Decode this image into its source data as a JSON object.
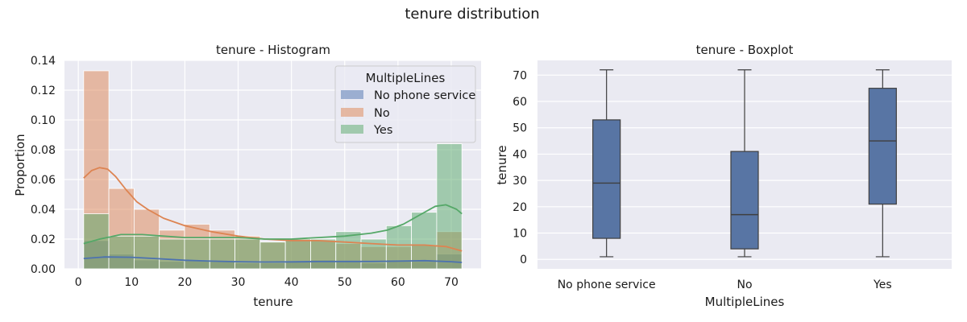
{
  "figure_title": "tenure distribution",
  "colors": {
    "no_phone_service": "#4c72b0",
    "no": "#dd8452",
    "yes": "#55a868",
    "box_fill": "#5875a4",
    "box_line": "#3f3f3f",
    "panel_bg": "#eaeaf2",
    "grid": "#ffffff"
  },
  "chart_data": [
    {
      "type": "histogram",
      "title": "tenure - Histogram",
      "xlabel": "tenure",
      "ylabel": "Proportion",
      "xlim": [
        -2.6,
        75.6
      ],
      "ylim": [
        0,
        0.14
      ],
      "xticks": [
        0,
        10,
        20,
        30,
        40,
        50,
        60,
        70
      ],
      "yticks": [
        0.0,
        0.02,
        0.04,
        0.06,
        0.08,
        0.1,
        0.12,
        0.14
      ],
      "yticklabels": [
        "0.00",
        "0.02",
        "0.04",
        "0.06",
        "0.08",
        "0.10",
        "0.12",
        "0.14"
      ],
      "bin_edges": [
        1,
        5.7333,
        10.4667,
        15.2,
        19.9333,
        24.6667,
        29.4,
        34.1333,
        38.8667,
        43.6,
        48.3333,
        53.0667,
        57.8,
        62.5333,
        67.2667,
        72
      ],
      "legend": {
        "title": "MultipleLines",
        "position": "top-right"
      },
      "series": [
        {
          "name": "No phone service",
          "color_key": "no_phone_service",
          "values": [
            0.019,
            0.01,
            0.006,
            0.005,
            0.006,
            0.005,
            0.004,
            0.004,
            0.005,
            0.006,
            0.005,
            0.004,
            0.006,
            0.005,
            0.01
          ],
          "kde": {
            "x": [
              1,
              5,
              10,
              15,
              20,
              25,
              30,
              35,
              40,
              45,
              50,
              55,
              60,
              65,
              70,
              72
            ],
            "y": [
              0.007,
              0.008,
              0.0078,
              0.0068,
              0.0058,
              0.0052,
              0.0048,
              0.0046,
              0.0047,
              0.0049,
              0.005,
              0.005,
              0.0052,
              0.0055,
              0.0048,
              0.0043
            ]
          }
        },
        {
          "name": "No",
          "color_key": "no",
          "values": [
            0.133,
            0.054,
            0.04,
            0.026,
            0.03,
            0.026,
            0.022,
            0.018,
            0.02,
            0.019,
            0.017,
            0.015,
            0.015,
            0.016,
            0.025
          ],
          "kde": {
            "x": [
              1,
              2.5,
              4,
              5.5,
              7,
              9,
              11,
              13,
              16,
              20,
              25,
              30,
              35,
              40,
              45,
              50,
              55,
              60,
              65,
              69,
              72
            ],
            "y": [
              0.061,
              0.066,
              0.068,
              0.067,
              0.062,
              0.053,
              0.045,
              0.04,
              0.034,
              0.029,
              0.025,
              0.022,
              0.02,
              0.019,
              0.019,
              0.018,
              0.017,
              0.016,
              0.016,
              0.015,
              0.012
            ]
          }
        },
        {
          "name": "Yes",
          "color_key": "yes",
          "values": [
            0.037,
            0.022,
            0.022,
            0.02,
            0.02,
            0.02,
            0.02,
            0.018,
            0.02,
            0.02,
            0.025,
            0.02,
            0.029,
            0.038,
            0.084
          ],
          "kde": {
            "x": [
              1,
              4,
              8,
              12,
              16,
              20,
              25,
              30,
              35,
              40,
              45,
              50,
              55,
              58,
              61,
              64,
              67,
              69,
              71,
              72
            ],
            "y": [
              0.017,
              0.02,
              0.023,
              0.023,
              0.022,
              0.021,
              0.021,
              0.021,
              0.02,
              0.02,
              0.021,
              0.022,
              0.024,
              0.026,
              0.03,
              0.036,
              0.042,
              0.043,
              0.04,
              0.037
            ]
          }
        }
      ]
    },
    {
      "type": "boxplot",
      "title": "tenure - Boxplot",
      "xlabel": "MultipleLines",
      "ylabel": "tenure",
      "categories": [
        "No phone service",
        "No",
        "Yes"
      ],
      "ylim": [
        -3.6,
        75.6
      ],
      "yticks": [
        0,
        10,
        20,
        30,
        40,
        50,
        60,
        70
      ],
      "grid": true,
      "boxes": [
        {
          "category": "No phone service",
          "min": 1,
          "q1": 8,
          "median": 29,
          "q3": 53,
          "max": 72
        },
        {
          "category": "No",
          "min": 1,
          "q1": 4,
          "median": 17,
          "q3": 41,
          "max": 72
        },
        {
          "category": "Yes",
          "min": 1,
          "q1": 21,
          "median": 45,
          "q3": 65,
          "max": 72
        }
      ]
    }
  ]
}
